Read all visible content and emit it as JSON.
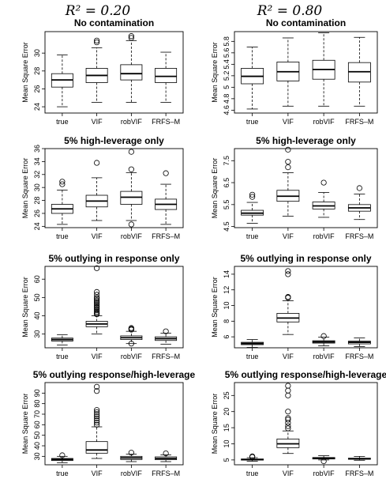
{
  "column_titles": [
    "R² = 0.20",
    "R² = 0.80"
  ],
  "chart_data": [
    {
      "type": "box",
      "title": "No contamination",
      "ylabel": "Mean Square Error",
      "categories": [
        "true",
        "VIF",
        "robVIF",
        "FRFS–M"
      ],
      "ylim": [
        23.3,
        32.4
      ],
      "yticks": [
        24,
        26,
        28,
        30
      ],
      "boxes": [
        {
          "lw": 24,
          "q1": 26.2,
          "med": 27.0,
          "q3": 27.7,
          "uw": 29.8,
          "outliers": []
        },
        {
          "lw": 24.5,
          "q1": 26.7,
          "med": 27.5,
          "q3": 28.3,
          "uw": 30.6,
          "outliers": [
            31.2,
            31.4
          ]
        },
        {
          "lw": 24.5,
          "q1": 27.0,
          "med": 27.7,
          "q3": 28.7,
          "uw": 31.4,
          "outliers": [
            31.7,
            31.9
          ]
        },
        {
          "lw": 24.5,
          "q1": 26.7,
          "med": 27.4,
          "q3": 28.3,
          "uw": 30.1,
          "outliers": []
        }
      ]
    },
    {
      "type": "box",
      "title": "No contamination",
      "ylabel": "Mean Square Error",
      "categories": [
        "true",
        "VIF",
        "robVIF",
        "FRFS–M"
      ],
      "ylim": [
        4.55,
        5.97
      ],
      "yticks": [
        4.6,
        4.8,
        5.0,
        5.2,
        5.4,
        5.6,
        5.8
      ],
      "boxes": [
        {
          "lw": 4.62,
          "q1": 5.06,
          "med": 5.19,
          "q3": 5.33,
          "uw": 5.7,
          "outliers": []
        },
        {
          "lw": 4.67,
          "q1": 5.11,
          "med": 5.27,
          "q3": 5.44,
          "uw": 5.86,
          "outliers": []
        },
        {
          "lw": 4.67,
          "q1": 5.14,
          "med": 5.31,
          "q3": 5.47,
          "uw": 5.95,
          "outliers": []
        },
        {
          "lw": 4.67,
          "q1": 5.09,
          "med": 5.27,
          "q3": 5.43,
          "uw": 5.87,
          "outliers": []
        }
      ]
    },
    {
      "type": "box",
      "title": "5% high-leverage only",
      "ylabel": "Mean Square Error",
      "categories": [
        "true",
        "VIF",
        "robVIF",
        "FRFS–M"
      ],
      "ylim": [
        23.8,
        36
      ],
      "yticks": [
        24,
        26,
        28,
        30,
        32,
        34,
        36
      ],
      "boxes": [
        {
          "lw": 24.3,
          "q1": 26.0,
          "med": 26.7,
          "q3": 27.4,
          "uw": 29.6,
          "outliers": [
            30.5,
            30.9
          ]
        },
        {
          "lw": 24.9,
          "q1": 27.0,
          "med": 27.9,
          "q3": 28.8,
          "uw": 31.5,
          "outliers": [
            33.8
          ]
        },
        {
          "lw": 24.9,
          "q1": 27.4,
          "med": 28.5,
          "q3": 29.4,
          "uw": 32.3,
          "outliers": [
            32.8,
            35.5,
            24.3
          ]
        },
        {
          "lw": 24.3,
          "q1": 26.6,
          "med": 27.4,
          "q3": 28.2,
          "uw": 30.5,
          "outliers": [
            32.2
          ]
        }
      ]
    },
    {
      "type": "box",
      "title": "5% high-leverage only",
      "ylabel": "Mean Square Error",
      "categories": [
        "true",
        "VIF",
        "robVIF",
        "FRFS–M"
      ],
      "ylim": [
        4.45,
        8.05
      ],
      "yticks": [
        4.5,
        5.5,
        6.5,
        7.5
      ],
      "boxes": [
        {
          "lw": 4.65,
          "q1": 5.02,
          "med": 5.11,
          "q3": 5.24,
          "uw": 5.6,
          "outliers": [
            5.85,
            5.95
          ]
        },
        {
          "lw": 4.97,
          "q1": 5.65,
          "med": 5.88,
          "q3": 6.15,
          "uw": 6.95,
          "outliers": [
            7.2,
            7.45,
            8.0
          ]
        },
        {
          "lw": 4.92,
          "q1": 5.3,
          "med": 5.44,
          "q3": 5.62,
          "uw": 6.05,
          "outliers": [
            6.5
          ]
        },
        {
          "lw": 4.82,
          "q1": 5.2,
          "med": 5.35,
          "q3": 5.5,
          "uw": 5.98,
          "outliers": [
            6.25
          ]
        }
      ]
    },
    {
      "type": "box",
      "title": "5% outlying in response only",
      "ylabel": "Mean Square Error",
      "categories": [
        "true",
        "VIF",
        "robVIF",
        "FRFS–M"
      ],
      "ylim": [
        22.5,
        67
      ],
      "yticks": [
        30,
        40,
        50,
        60
      ],
      "boxes": [
        {
          "lw": 24,
          "q1": 26.2,
          "med": 27.0,
          "q3": 27.8,
          "uw": 29.7,
          "outliers": []
        },
        {
          "lw": 30,
          "q1": 34.0,
          "med": 35.5,
          "q3": 37.0,
          "uw": 40.0,
          "outliers": [
            40.8,
            41.5,
            42.2,
            43.0,
            43.7,
            44.5,
            45.2,
            46.0,
            46.8,
            47.5,
            48.3,
            49.2,
            50.0,
            51.5,
            53.0,
            66.0
          ]
        },
        {
          "lw": 24.8,
          "q1": 27.0,
          "med": 28.0,
          "q3": 29.0,
          "uw": 31.5,
          "outliers": [
            32.4,
            32.8,
            33.3,
            24.8
          ]
        },
        {
          "lw": 24.5,
          "q1": 26.5,
          "med": 27.5,
          "q3": 28.5,
          "uw": 30.5,
          "outliers": [
            31.5
          ]
        }
      ]
    },
    {
      "type": "box",
      "title": "5% outlying in response only",
      "ylabel": "Mean Square Error",
      "categories": [
        "true",
        "VIF",
        "robVIF",
        "FRFS–M"
      ],
      "ylim": [
        4.6,
        15
      ],
      "yticks": [
        6,
        8,
        10,
        12,
        14
      ],
      "boxes": [
        {
          "lw": 4.65,
          "q1": 5.0,
          "med": 5.15,
          "q3": 5.3,
          "uw": 5.65,
          "outliers": []
        },
        {
          "lw": 6.3,
          "q1": 7.9,
          "med": 8.4,
          "q3": 9.0,
          "uw": 10.6,
          "outliers": [
            11.0,
            11.1,
            14.0,
            14.4
          ]
        },
        {
          "lw": 4.85,
          "q1": 5.2,
          "med": 5.35,
          "q3": 5.5,
          "uw": 5.95,
          "outliers": [
            6.1
          ]
        },
        {
          "lw": 4.75,
          "q1": 5.1,
          "med": 5.3,
          "q3": 5.45,
          "uw": 5.85,
          "outliers": []
        }
      ]
    },
    {
      "type": "box",
      "title": "5% outlying response/high-leverage",
      "ylabel": "Mean Square Error",
      "categories": [
        "true",
        "VIF",
        "robVIF",
        "FRFS–M"
      ],
      "ylim": [
        22,
        100
      ],
      "yticks": [
        30,
        40,
        50,
        60,
        70,
        80,
        90
      ],
      "boxes": [
        {
          "lw": 24,
          "q1": 26.0,
          "med": 27.0,
          "q3": 28.0,
          "uw": 30.0,
          "outliers": [
            31.0
          ]
        },
        {
          "lw": 28,
          "q1": 33.0,
          "med": 36.0,
          "q3": 44.0,
          "uw": 58.0,
          "outliers": [
            60,
            62,
            64,
            66,
            68,
            70,
            72,
            74,
            92,
            96
          ]
        },
        {
          "lw": 25,
          "q1": 27.0,
          "med": 28.5,
          "q3": 30.0,
          "uw": 32.0,
          "outliers": [
            33.5
          ]
        },
        {
          "lw": 25,
          "q1": 26.8,
          "med": 28.0,
          "q3": 29.5,
          "uw": 31.5,
          "outliers": [
            32.8
          ]
        }
      ]
    },
    {
      "type": "box",
      "title": "5% outlying response/high-leverage",
      "ylabel": "Mean Square Error",
      "categories": [
        "true",
        "VIF",
        "robVIF",
        "FRFS–M"
      ],
      "ylim": [
        3.5,
        29
      ],
      "yticks": [
        5,
        10,
        15,
        20,
        25
      ],
      "boxes": [
        {
          "lw": 4.6,
          "q1": 4.95,
          "med": 5.1,
          "q3": 5.3,
          "uw": 5.7,
          "outliers": [
            5.9,
            6.1
          ]
        },
        {
          "lw": 7.0,
          "q1": 8.8,
          "med": 10.0,
          "q3": 11.5,
          "uw": 14.0,
          "outliers": [
            14.8,
            15.5,
            16.5,
            17.5,
            18.0,
            20.0,
            25.0,
            26.5,
            28.0
          ]
        },
        {
          "lw": 5.0,
          "q1": 5.3,
          "med": 5.5,
          "q3": 5.75,
          "uw": 6.3,
          "outliers": [
            4.6
          ]
        },
        {
          "lw": 4.9,
          "q1": 5.2,
          "med": 5.35,
          "q3": 5.55,
          "uw": 6.1,
          "outliers": []
        }
      ]
    }
  ]
}
